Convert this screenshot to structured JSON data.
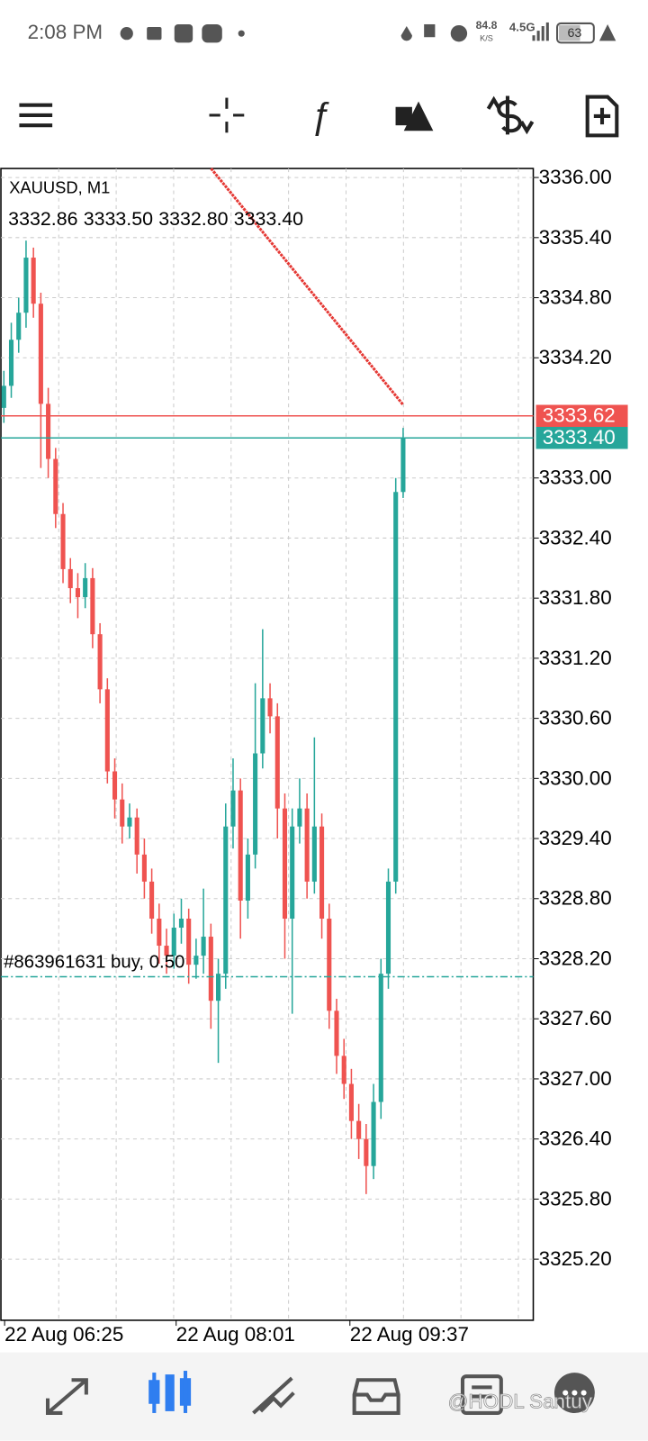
{
  "status_bar": {
    "time": "2:08 PM",
    "speed": "84.8",
    "speed_unit": "K/S",
    "network": "4.5G",
    "battery": "63"
  },
  "chart_data": {
    "type": "candlestick",
    "symbol": "XAUUSD, M1",
    "ohlc_labels": [
      "3332.86",
      "3333.50",
      "3332.80",
      "3333.40"
    ],
    "open": [
      3333.7,
      3333.92,
      3334.38,
      3334.65,
      3335.2,
      3334.74,
      3333.74,
      3333.19,
      3332.64,
      3332.09,
      3331.9,
      3331.81,
      3332.0,
      3331.44,
      3330.89,
      3330.07,
      3329.79,
      3329.52,
      3329.61,
      3329.24,
      3328.97,
      3328.6,
      3328.33,
      3328.23,
      3328.51,
      3328.6,
      3328.14,
      3328.23,
      3328.42,
      3327.78,
      3328.05,
      3329.52,
      3329.88,
      3328.78,
      3329.24,
      3330.25,
      3330.8,
      3330.62,
      3329.7,
      3328.6,
      3329.52,
      3329.7,
      3328.97,
      3329.52,
      3328.6,
      3327.68,
      3327.23,
      3326.95,
      3326.58,
      3326.4,
      3326.13,
      3326.77,
      3328.05,
      3328.97,
      3332.86
    ],
    "high": [
      3334.07,
      3334.55,
      3334.8,
      3335.37,
      3335.3,
      3334.85,
      3333.9,
      3333.3,
      3332.75,
      3332.2,
      3332.05,
      3332.15,
      3332.1,
      3331.55,
      3331.0,
      3330.2,
      3329.95,
      3329.75,
      3329.7,
      3329.4,
      3329.1,
      3328.75,
      3328.5,
      3328.65,
      3328.8,
      3328.7,
      3328.4,
      3328.9,
      3328.55,
      3328.2,
      3329.75,
      3330.2,
      3330.0,
      3329.4,
      3330.95,
      3331.49,
      3330.95,
      3330.75,
      3329.85,
      3329.7,
      3330.0,
      3329.85,
      3330.41,
      3329.65,
      3328.75,
      3327.8,
      3327.4,
      3327.1,
      3326.75,
      3326.55,
      3326.95,
      3328.2,
      3329.1,
      3333.0,
      3333.5
    ],
    "low": [
      3333.55,
      3333.8,
      3334.25,
      3334.5,
      3334.6,
      3333.1,
      3333.0,
      3332.5,
      3331.95,
      3331.75,
      3331.6,
      3331.7,
      3331.3,
      3330.75,
      3329.95,
      3329.6,
      3329.35,
      3329.4,
      3329.05,
      3328.8,
      3328.45,
      3328.15,
      3328.05,
      3328.1,
      3328.35,
      3327.95,
      3328.0,
      3328.05,
      3327.5,
      3327.16,
      3327.9,
      3329.3,
      3328.4,
      3328.6,
      3329.1,
      3330.1,
      3330.45,
      3329.4,
      3328.2,
      3327.65,
      3329.35,
      3328.8,
      3328.85,
      3328.4,
      3327.5,
      3327.05,
      3326.8,
      3326.4,
      3326.2,
      3325.85,
      3326.0,
      3326.6,
      3327.9,
      3328.85,
      3332.8
    ],
    "close": [
      3333.92,
      3334.38,
      3334.65,
      3335.2,
      3334.74,
      3333.74,
      3333.19,
      3332.64,
      3332.09,
      3331.9,
      3331.81,
      3332.0,
      3331.44,
      3330.89,
      3330.07,
      3329.79,
      3329.52,
      3329.61,
      3329.24,
      3328.97,
      3328.6,
      3328.33,
      3328.23,
      3328.51,
      3328.6,
      3328.14,
      3328.23,
      3328.42,
      3327.78,
      3328.05,
      3329.52,
      3329.88,
      3328.78,
      3329.24,
      3330.25,
      3330.8,
      3330.62,
      3329.7,
      3328.6,
      3329.52,
      3329.7,
      3328.97,
      3329.52,
      3328.6,
      3327.68,
      3327.23,
      3326.95,
      3326.58,
      3326.4,
      3326.13,
      3326.77,
      3328.05,
      3328.97,
      3332.86,
      3333.4
    ],
    "up_color": "#26a69a",
    "down_color": "#ef5350",
    "xlim": [
      -0.4,
      71.6
    ],
    "ylim": [
      3324.59,
      3336.09
    ],
    "xticks": [
      {
        "value": 0.1,
        "label": "22 Aug 06:25"
      },
      {
        "value": 23.3,
        "label": "22 Aug 08:01"
      },
      {
        "value": 46.8,
        "label": "22 Aug 09:37"
      }
    ],
    "yticks": [
      {
        "value": 3325.2,
        "label": "3325.20"
      },
      {
        "value": 3325.8,
        "label": "3325.80"
      },
      {
        "value": 3326.4,
        "label": "3326.40"
      },
      {
        "value": 3327,
        "label": "3327.00"
      },
      {
        "value": 3327.6,
        "label": "3327.60"
      },
      {
        "value": 3328.2,
        "label": "3328.20"
      },
      {
        "value": 3328.8,
        "label": "3328.80"
      },
      {
        "value": 3329.4,
        "label": "3329.40"
      },
      {
        "value": 3330,
        "label": "3330.00"
      },
      {
        "value": 3330.6,
        "label": "3330.60"
      },
      {
        "value": 3331.2,
        "label": "3331.20"
      },
      {
        "value": 3331.8,
        "label": "3331.80"
      },
      {
        "value": 3332.4,
        "label": "3332.40"
      },
      {
        "value": 3333,
        "label": "3333.00"
      },
      {
        "value": 3334.2,
        "label": "3334.20"
      },
      {
        "value": 3334.8,
        "label": "3334.80"
      },
      {
        "value": 3335.4,
        "label": "3335.40"
      },
      {
        "value": 3336,
        "label": "3336.00"
      }
    ],
    "grid": true,
    "ask": {
      "value": 3333.62,
      "label": "3333.62",
      "color": "#ef5350"
    },
    "bid": {
      "value": 3333.4,
      "label": "3333.40",
      "color": "#26a69a"
    },
    "order": {
      "label": "#863961631 buy, 0.50",
      "price": 3328.02
    }
  },
  "watermark": "@HODL Santuy"
}
